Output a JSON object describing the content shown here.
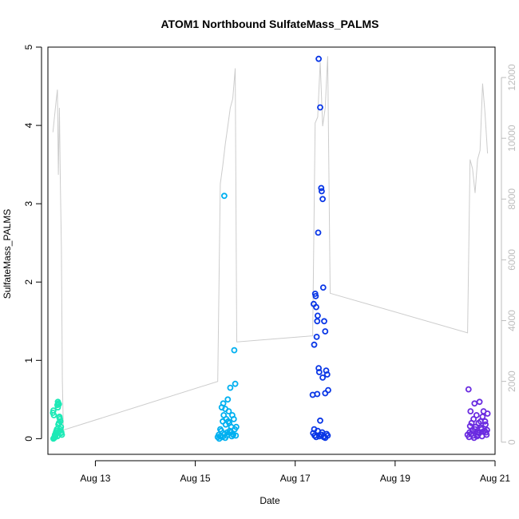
{
  "chart_data": {
    "type": "scatter",
    "title": "ATOM1 Northbound SulfateMass_PALMS",
    "xlabel": "Date",
    "ylabel": "SulfateMass_PALMS",
    "xlim": [
      12.05,
      21.0
    ],
    "ylim": [
      -0.2,
      5.0
    ],
    "y2lim": [
      -400,
      13000
    ],
    "x_ticks": [
      13,
      15,
      17,
      19,
      21
    ],
    "x_tick_labels": [
      "Aug 13",
      "Aug 15",
      "Aug 17",
      "Aug 19",
      "Aug 21"
    ],
    "y_ticks": [
      0,
      1,
      2,
      3,
      4,
      5
    ],
    "y_tick_labels": [
      "0",
      "1",
      "2",
      "3",
      "4",
      "5"
    ],
    "y2_ticks": [
      0,
      2000,
      4000,
      6000,
      8000,
      10000,
      12000
    ],
    "y2_tick_labels": [
      "0",
      "2000",
      "4000",
      "6000",
      "8000",
      "10000",
      "12000"
    ],
    "grid": false,
    "colors": {
      "flight1": "#1de9b6",
      "flight2": "#00b0f0",
      "flight3": "#0a37e6",
      "flight4": "#6a2be0",
      "altitude_line": "#cccccc"
    },
    "series": [
      {
        "name": "",
        "x": [
          12.15,
          12.16,
          12.17,
          12.18,
          12.19,
          12.2,
          12.21,
          12.22,
          12.23,
          12.24,
          12.25,
          12.26,
          12.27,
          12.28,
          12.29,
          12.3,
          12.31,
          12.32,
          12.33,
          12.22,
          12.24,
          12.26,
          12.28,
          12.3,
          12.16,
          12.18,
          12.2,
          12.25,
          12.27,
          12.29,
          12.31
        ],
        "y": [
          0.33,
          0.36,
          0.3,
          0.02,
          0.05,
          0.04,
          0.08,
          0.1,
          0.12,
          0.43,
          0.47,
          0.45,
          0.2,
          0.28,
          0.25,
          0.22,
          0.15,
          0.08,
          0.05,
          0.06,
          0.03,
          0.18,
          0.27,
          0.12,
          0.0,
          0.01,
          0.03,
          0.4,
          0.44,
          0.1,
          0.07
        ]
      },
      {
        "name": "",
        "x": [
          15.45,
          15.47,
          15.5,
          15.52,
          15.55,
          15.57,
          15.58,
          15.6,
          15.62,
          15.64,
          15.65,
          15.67,
          15.68,
          15.7,
          15.72,
          15.74,
          15.75,
          15.77,
          15.78,
          15.8,
          15.82,
          15.5,
          15.53,
          15.56,
          15.59,
          15.61,
          15.63,
          15.66,
          15.69,
          15.71,
          15.73,
          15.76,
          15.79,
          15.81,
          15.48,
          15.54,
          15.6
        ],
        "y": [
          0.02,
          0.05,
          0.03,
          0.1,
          0.22,
          0.3,
          3.1,
          0.38,
          0.25,
          0.08,
          0.5,
          0.35,
          0.2,
          0.65,
          0.15,
          0.3,
          0.06,
          0.25,
          1.13,
          0.7,
          0.15,
          0.12,
          0.4,
          0.45,
          0.06,
          0.18,
          0.04,
          0.22,
          0.1,
          0.08,
          0.03,
          0.05,
          0.12,
          0.04,
          0.0,
          0.02,
          0.01
        ]
      },
      {
        "name": "",
        "x": [
          17.35,
          17.37,
          17.38,
          17.4,
          17.41,
          17.42,
          17.43,
          17.44,
          17.45,
          17.46,
          17.47,
          17.48,
          17.5,
          17.52,
          17.53,
          17.55,
          17.56,
          17.58,
          17.6,
          17.62,
          17.64,
          17.66,
          17.36,
          17.39,
          17.42,
          17.45,
          17.48,
          17.51,
          17.54,
          17.57,
          17.6,
          17.63,
          17.65,
          17.38,
          17.44,
          17.5,
          17.55,
          17.6,
          17.47,
          17.53,
          17.58
        ],
        "y": [
          0.56,
          1.72,
          1.2,
          1.85,
          1.82,
          1.68,
          1.3,
          1.5,
          1.57,
          2.63,
          4.85,
          0.85,
          4.23,
          3.2,
          3.16,
          3.06,
          1.93,
          1.5,
          1.37,
          0.87,
          0.82,
          0.62,
          0.07,
          0.04,
          0.02,
          0.1,
          0.03,
          0.05,
          0.08,
          0.02,
          0.01,
          0.06,
          0.04,
          0.12,
          0.57,
          0.23,
          0.78,
          0.58,
          0.9,
          0.05,
          0.03
        ]
      },
      {
        "name": "",
        "x": [
          20.45,
          20.47,
          20.49,
          20.51,
          20.53,
          20.55,
          20.57,
          20.59,
          20.61,
          20.63,
          20.65,
          20.67,
          20.69,
          20.71,
          20.73,
          20.75,
          20.77,
          20.79,
          20.81,
          20.83,
          20.85,
          20.48,
          20.52,
          20.56,
          20.6,
          20.64,
          20.68,
          20.72,
          20.76,
          20.8,
          20.84,
          20.5,
          20.58,
          20.66,
          20.74,
          20.82
        ],
        "y": [
          0.05,
          0.63,
          0.08,
          0.35,
          0.2,
          0.1,
          0.25,
          0.45,
          0.15,
          0.3,
          0.08,
          0.2,
          0.47,
          0.22,
          0.12,
          0.28,
          0.35,
          0.1,
          0.18,
          0.05,
          0.32,
          0.02,
          0.06,
          0.04,
          0.12,
          0.03,
          0.07,
          0.14,
          0.09,
          0.22,
          0.11,
          0.16,
          0.01,
          0.05,
          0.03,
          0.08
        ]
      }
    ],
    "altitude_line": {
      "x": [
        12.15,
        12.2,
        12.22,
        12.24,
        12.26,
        12.28,
        12.3,
        12.32,
        12.34,
        12.36,
        15.45,
        15.5,
        15.55,
        15.6,
        15.65,
        15.7,
        15.75,
        15.8,
        15.83,
        17.35,
        17.4,
        17.45,
        17.5,
        17.55,
        17.6,
        17.65,
        17.7,
        20.45,
        20.5,
        20.55,
        20.6,
        20.65,
        20.7,
        20.75,
        20.8,
        20.85
      ],
      "y": [
        10200,
        11000,
        11300,
        11600,
        8800,
        11000,
        8500,
        6400,
        2000,
        400,
        2000,
        8500,
        9100,
        9800,
        10400,
        11000,
        11300,
        12300,
        3300,
        3500,
        10500,
        10700,
        12500,
        10400,
        11000,
        12700,
        4900,
        3600,
        9300,
        9000,
        8200,
        9300,
        9600,
        11800,
        10800,
        9500
      ]
    }
  }
}
